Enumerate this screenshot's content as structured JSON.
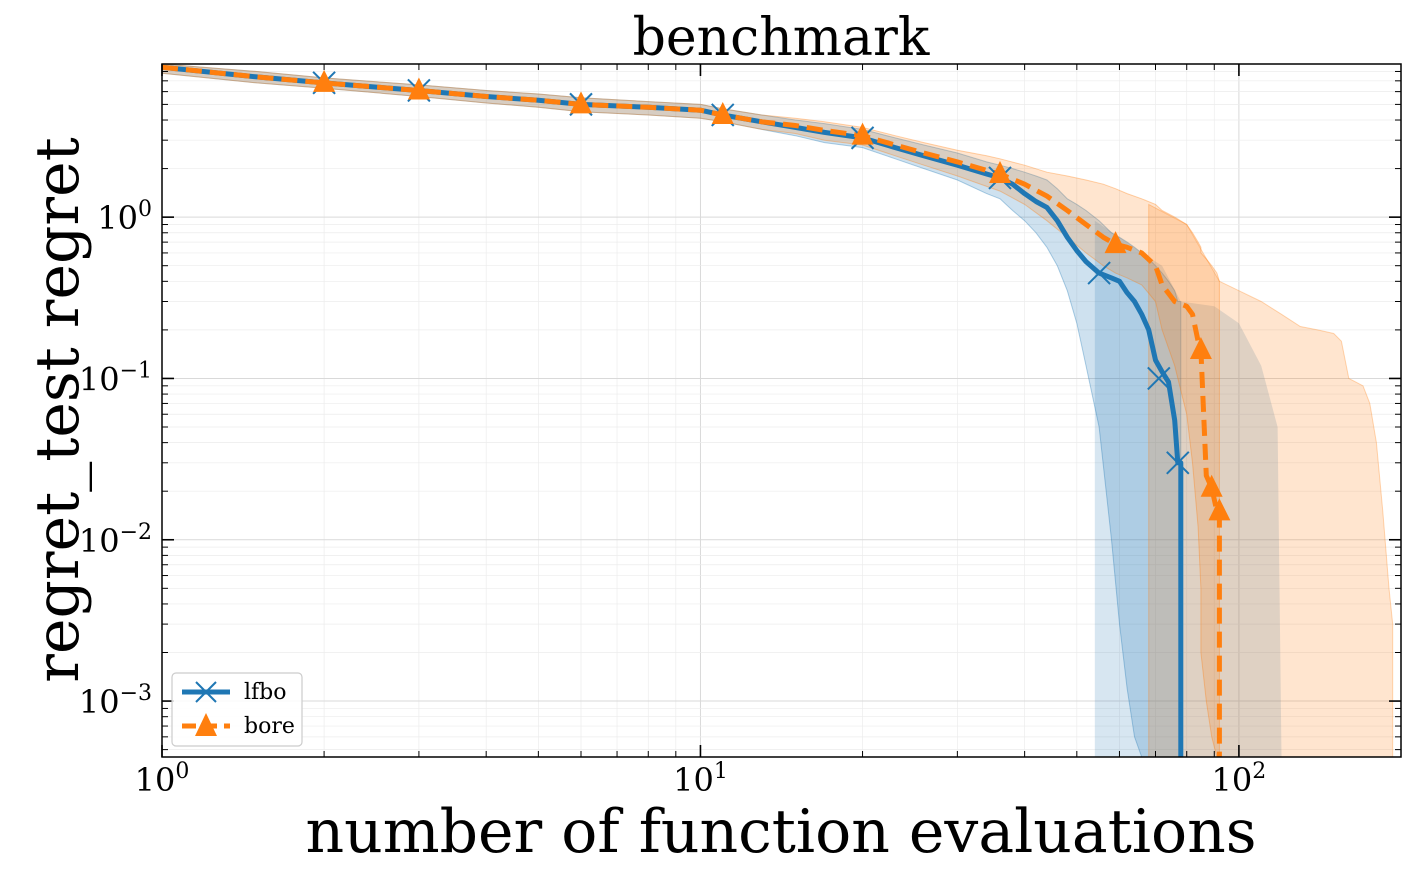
{
  "chart_data": {
    "type": "line",
    "title": "benchmark",
    "xlabel": "number of function evaluations",
    "ylabel": "regret_test regret",
    "xscale": "log",
    "yscale": "log",
    "xlim": [
      1,
      200
    ],
    "ylim": [
      0.00045,
      8.9
    ],
    "grid": true,
    "legend_position": "lower-left",
    "x_ticks": [
      {
        "value": 1,
        "base": "10",
        "exp": "0"
      },
      {
        "value": 10,
        "base": "10",
        "exp": "1"
      },
      {
        "value": 100,
        "base": "10",
        "exp": "2"
      }
    ],
    "y_ticks": [
      {
        "value": 1,
        "base": "10",
        "exp": "0"
      },
      {
        "value": 0.1,
        "base": "10",
        "exp": "−1"
      },
      {
        "value": 0.01,
        "base": "10",
        "exp": "−2"
      },
      {
        "value": 0.001,
        "base": "10",
        "exp": "−3"
      }
    ],
    "series": [
      {
        "name": "lfbo",
        "color": "#1f77b4",
        "marker": "x",
        "line_style": "solid",
        "x": [
          1,
          1.5,
          2,
          2.5,
          3,
          4,
          5,
          6,
          8,
          10,
          11,
          13,
          15,
          17,
          20,
          23,
          26,
          30,
          34,
          36,
          38,
          40,
          42,
          44,
          46,
          48,
          50,
          52,
          55,
          58,
          60,
          62,
          64,
          66,
          68,
          70,
          72,
          74,
          76,
          77,
          78,
          78.01
        ],
        "y": [
          8.5,
          7.4,
          6.8,
          6.4,
          6.1,
          5.6,
          5.3,
          5.0,
          4.8,
          4.6,
          4.3,
          3.9,
          3.6,
          3.35,
          3.1,
          2.7,
          2.4,
          2.1,
          1.85,
          1.75,
          1.6,
          1.4,
          1.25,
          1.15,
          0.95,
          0.75,
          0.62,
          0.53,
          0.45,
          0.42,
          0.4,
          0.34,
          0.3,
          0.25,
          0.2,
          0.13,
          0.11,
          0.095,
          0.055,
          0.03,
          0.03,
          0.00045
        ],
        "band_upper": [
          9.2,
          8.0,
          7.3,
          6.9,
          6.6,
          6.1,
          5.8,
          5.5,
          5.2,
          5.0,
          4.7,
          4.3,
          4.0,
          3.8,
          3.5,
          3.1,
          2.8,
          2.5,
          2.2,
          2.1,
          2.0,
          1.9,
          1.8,
          1.7,
          1.5,
          1.3,
          1.2,
          1.1,
          0.95,
          0.8,
          0.75,
          0.7,
          0.65,
          0.6,
          0.55,
          0.5,
          0.45,
          0.4,
          0.35,
          0.3,
          0.3,
          0.3
        ],
        "band_lower": [
          7.8,
          6.8,
          6.3,
          5.9,
          5.6,
          5.1,
          4.8,
          4.5,
          4.3,
          4.1,
          3.9,
          3.5,
          3.2,
          2.9,
          2.7,
          2.3,
          2.0,
          1.7,
          1.4,
          1.3,
          1.1,
          0.95,
          0.8,
          0.65,
          0.5,
          0.35,
          0.22,
          0.12,
          0.05,
          0.01,
          0.003,
          0.0012,
          0.0006,
          0.0004,
          0.0003,
          0.0003,
          0.0003,
          0.0003,
          0.0003,
          0.0003,
          0.0003,
          0.0003
        ],
        "band_x_lower_end": 54,
        "band_x_upper_end": 69,
        "markers_x": [
          2,
          3,
          6,
          11,
          20,
          36,
          55,
          71,
          77
        ],
        "markers_y": [
          6.8,
          6.1,
          5.0,
          4.3,
          3.1,
          1.75,
          0.45,
          0.1,
          0.03
        ]
      },
      {
        "name": "bore",
        "color": "#ff7f0e",
        "marker": "^",
        "line_style": "dashed",
        "x": [
          1,
          1.5,
          2,
          2.5,
          3,
          4,
          5,
          6,
          8,
          10,
          11,
          13,
          15,
          17,
          20,
          23,
          26,
          30,
          34,
          36,
          40,
          44,
          48,
          52,
          56,
          59,
          62,
          66,
          70,
          72,
          76,
          80,
          82,
          84,
          85,
          85.01,
          87,
          89,
          91,
          92,
          92.01
        ],
        "y": [
          8.5,
          7.4,
          6.8,
          6.4,
          6.1,
          5.6,
          5.3,
          5.0,
          4.8,
          4.6,
          4.3,
          3.9,
          3.7,
          3.45,
          3.2,
          2.8,
          2.5,
          2.2,
          1.95,
          1.85,
          1.6,
          1.35,
          1.1,
          0.9,
          0.75,
          0.68,
          0.65,
          0.6,
          0.5,
          0.38,
          0.3,
          0.28,
          0.25,
          0.17,
          0.15,
          0.15,
          0.025,
          0.021,
          0.015,
          0.015,
          0.00045
        ],
        "band_upper": [
          9.2,
          8.0,
          7.3,
          6.9,
          6.6,
          6.1,
          5.8,
          5.5,
          5.2,
          5.0,
          4.7,
          4.3,
          4.1,
          3.9,
          3.6,
          3.2,
          2.9,
          2.6,
          2.4,
          2.3,
          2.1,
          1.9,
          1.8,
          1.7,
          1.6,
          1.5,
          1.4,
          1.3,
          1.2,
          1.1,
          1.0,
          0.9,
          0.8,
          0.7,
          0.65,
          0.6,
          0.55,
          0.5,
          0.45,
          0.4,
          0.4
        ],
        "band_lower": [
          7.8,
          6.8,
          6.3,
          5.9,
          5.6,
          5.1,
          4.8,
          4.5,
          4.3,
          4.1,
          3.9,
          3.5,
          3.3,
          3.0,
          2.8,
          2.4,
          2.1,
          1.8,
          1.55,
          1.45,
          1.2,
          0.95,
          0.75,
          0.6,
          0.5,
          0.45,
          0.42,
          0.38,
          0.3,
          0.2,
          0.12,
          0.06,
          0.03,
          0.012,
          0.005,
          0.002,
          0.001,
          0.0006,
          0.0004,
          0.0003,
          0.0003
        ],
        "band2_upper_x": [
          100,
          110,
          120,
          130,
          140,
          150,
          155,
          160,
          170,
          175,
          180,
          185,
          190,
          193
        ],
        "band2_upper_y": [
          0.35,
          0.3,
          0.25,
          0.21,
          0.2,
          0.19,
          0.17,
          0.1,
          0.09,
          0.07,
          0.04,
          0.015,
          0.005,
          0.003
        ],
        "markers_x": [
          2,
          3,
          6,
          11,
          20,
          36,
          59,
          85,
          89,
          92
        ],
        "markers_y": [
          6.8,
          6.1,
          5.0,
          4.3,
          3.2,
          1.85,
          0.68,
          0.15,
          0.021,
          0.015
        ]
      }
    ]
  }
}
